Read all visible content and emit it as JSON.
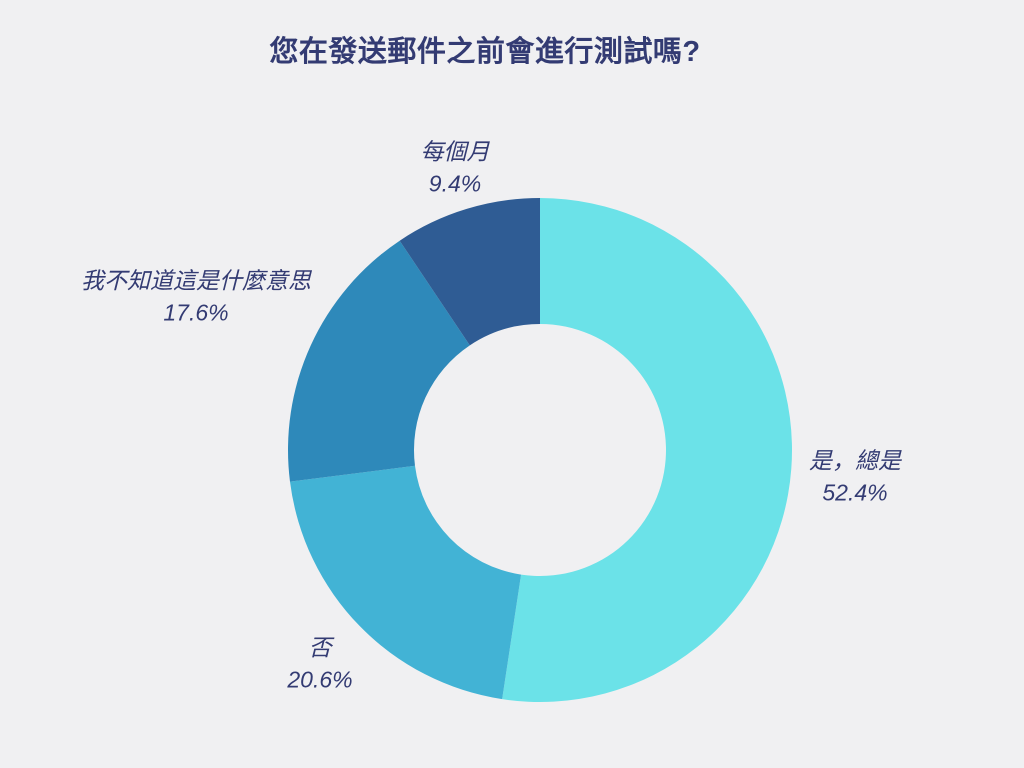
{
  "title": "您在發送郵件之前會進行測試嗎?",
  "colors": {
    "background": "#f0f0f2",
    "text": "#333b73"
  },
  "chart_data": {
    "type": "pie",
    "subtype": "donut",
    "title": "您在發送郵件之前會進行測試嗎?",
    "start_angle_deg": 0,
    "direction": "clockwise",
    "inner_radius_ratio": 0.5,
    "legend_position": "none",
    "slices": [
      {
        "label": "是，總是",
        "value": 52.4,
        "pct_text": "52.4%",
        "color": "#6be2e8",
        "label_position": "right"
      },
      {
        "label": "否",
        "value": 20.6,
        "pct_text": "20.6%",
        "color": "#42b3d5",
        "label_position": "bottom-left"
      },
      {
        "label": "我不知道這是什麼意思",
        "value": 17.6,
        "pct_text": "17.6%",
        "color": "#2e89ba",
        "label_position": "left"
      },
      {
        "label": "每個月",
        "value": 9.4,
        "pct_text": "9.4%",
        "color": "#2f5c94",
        "label_position": "top"
      }
    ]
  }
}
